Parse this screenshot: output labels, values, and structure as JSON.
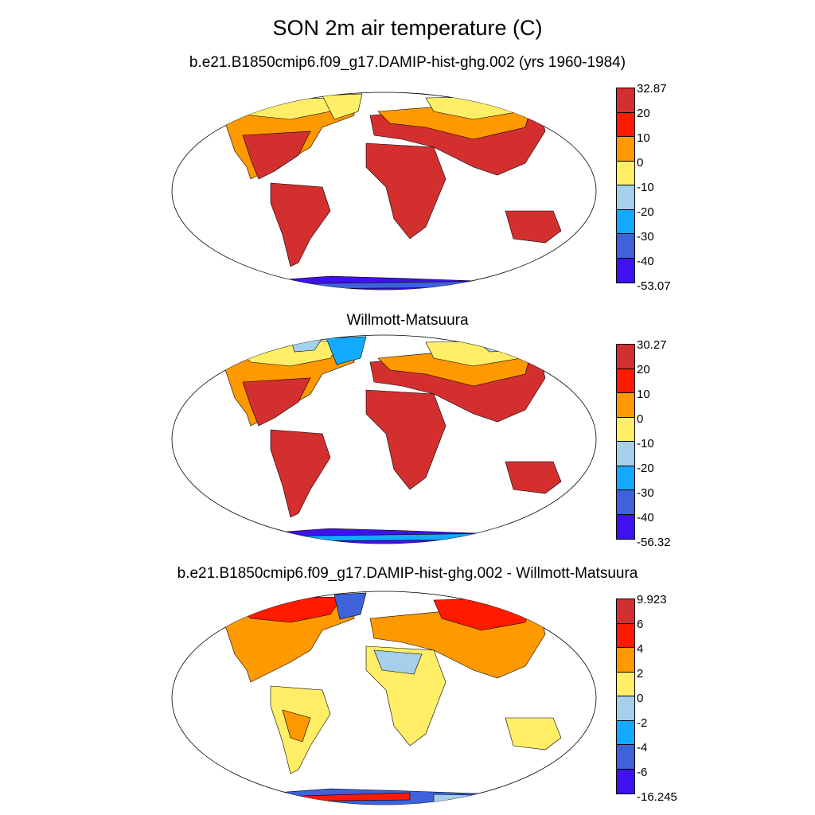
{
  "title": "SON 2m air temperature (C)",
  "colors": {
    "main": [
      "#d32f2f",
      "#ff1a00",
      "#ff9900",
      "#ffee66",
      "#a5cfea",
      "#11aaff",
      "#3d62d9",
      "#3f11ee"
    ],
    "land_model": "#d32f2f",
    "ocean": "#ffffff"
  },
  "panels": [
    {
      "title": "b.e21.B1850cmip6.f09_g17.DAMIP-hist-ghg.002 (yrs 1960-1984)",
      "colorbar_labels": [
        "32.87",
        "20",
        "10",
        "0",
        "-10",
        "-20",
        "-30",
        "-40",
        "-53.07"
      ]
    },
    {
      "title": "Willmott-Matsuura",
      "colorbar_labels": [
        "30.27",
        "20",
        "10",
        "0",
        "-10",
        "-20",
        "-30",
        "-40",
        "-56.32"
      ]
    },
    {
      "title": "b.e21.B1850cmip6.f09_g17.DAMIP-hist-ghg.002 - Willmott-Matsuura",
      "colorbar_labels": [
        "9.923",
        "6",
        "4",
        "2",
        "0",
        "-2",
        "-4",
        "-6",
        "-16.245"
      ]
    }
  ]
}
